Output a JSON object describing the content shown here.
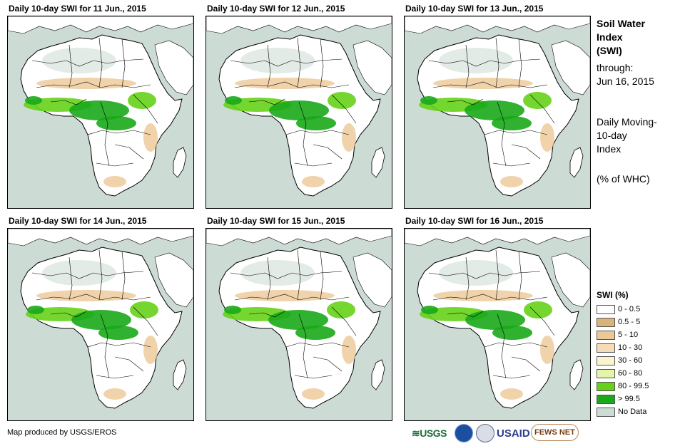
{
  "panels": [
    {
      "title": "Daily 10-day SWI for 11 Jun., 2015"
    },
    {
      "title": "Daily 10-day SWI for 12 Jun., 2015"
    },
    {
      "title": "Daily 10-day SWI for 13 Jun., 2015"
    },
    {
      "title": "Daily 10-day SWI for 14 Jun., 2015"
    },
    {
      "title": "Daily 10-day SWI for 15 Jun., 2015"
    },
    {
      "title": "Daily 10-day SWI for 16 Jun., 2015"
    }
  ],
  "side": {
    "title_line1": "Soil Water",
    "title_line2": "Index",
    "title_line3": "(SWI)",
    "through_label": "through:",
    "through_date": "Jun 16, 2015",
    "method_line1": "Daily Moving-",
    "method_line2": "10-day",
    "method_line3": "Index",
    "units": "(% of WHC)"
  },
  "legend": {
    "title": "SWI (%)",
    "items": [
      {
        "label": "0 - 0.5",
        "color": "#ffffff"
      },
      {
        "label": "0.5 - 5",
        "color": "#d9b47a"
      },
      {
        "label": "5 - 10",
        "color": "#ecc896"
      },
      {
        "label": "10 - 30",
        "color": "#f6dcb6"
      },
      {
        "label": "30 - 60",
        "color": "#fbf5cf"
      },
      {
        "label": "60 - 80",
        "color": "#e3f5a8"
      },
      {
        "label": "80 - 99.5",
        "color": "#66d11a"
      },
      {
        "label": "> 99.5",
        "color": "#19a919"
      },
      {
        "label": "No Data",
        "color": "#cddbd5"
      }
    ]
  },
  "credit": "Map produced by USGS/EROS",
  "logos": {
    "usgs": "≋USGS",
    "usaid": "USAID",
    "fews": "FEWS NET"
  },
  "colors": {
    "ocean": "#cddbd5",
    "land": "#ffffff",
    "nodata": "#e3ebe6",
    "dry": "#ecc896",
    "wet": "#66d11a",
    "saturated": "#19a919"
  }
}
